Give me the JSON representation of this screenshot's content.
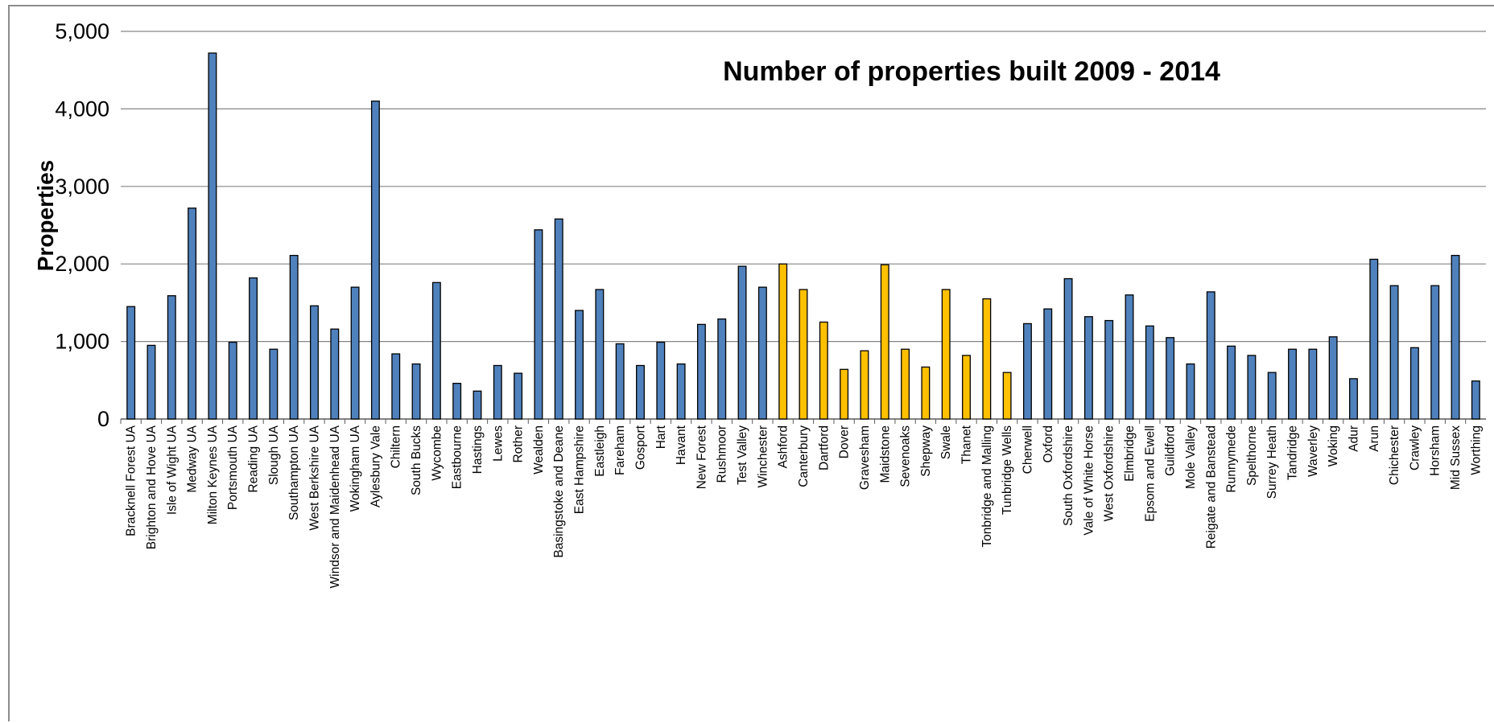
{
  "chart_data": {
    "type": "bar",
    "title": "Number of properties built 2009 - 2014",
    "xlabel": "",
    "ylabel": "Properties",
    "ylim": [
      0,
      5000
    ],
    "yticks": [
      0,
      1000,
      2000,
      3000,
      4000,
      5000
    ],
    "ytick_labels": [
      "0",
      "1,000",
      "2,000",
      "3,000",
      "4,000",
      "5,000"
    ],
    "grid": true,
    "legend": "none",
    "colors": {
      "default": "#4f81bd",
      "highlight": "#ffc000",
      "outline": "#000000",
      "gridline": "#868686"
    },
    "categories": [
      "Bracknell Forest UA",
      "Brighton and Hove UA",
      "Isle of Wight UA",
      "Medway UA",
      "Milton Keynes UA",
      "Portsmouth UA",
      "Reading UA",
      "Slough UA",
      "Southampton UA",
      "West Berkshire UA",
      "Windsor and Maidenhead UA",
      "Wokingham UA",
      "Aylesbury Vale",
      "Chiltern",
      "South Bucks",
      "Wycombe",
      "Eastbourne",
      "Hastings",
      "Lewes",
      "Rother",
      "Wealden",
      "Basingstoke and Deane",
      "East Hampshire",
      "Eastleigh",
      "Fareham",
      "Gosport",
      "Hart",
      "Havant",
      "New Forest",
      "Rushmoor",
      "Test Valley",
      "Winchester",
      "Ashford",
      "Canterbury",
      "Dartford",
      "Dover",
      "Gravesham",
      "Maidstone",
      "Sevenoaks",
      "Shepway",
      "Swale",
      "Thanet",
      "Tonbridge and Malling",
      "Tunbridge Wells",
      "Cherwell",
      "Oxford",
      "South Oxfordshire",
      "Vale of White Horse",
      "West Oxfordshire",
      "Elmbridge",
      "Epsom and Ewell",
      "Guildford",
      "Mole Valley",
      "Reigate and Banstead",
      "Runnymede",
      "Spelthorne",
      "Surrey Heath",
      "Tandridge",
      "Waverley",
      "Woking",
      "Adur",
      "Arun",
      "Chichester",
      "Crawley",
      "Horsham",
      "Mid Sussex",
      "Worthing"
    ],
    "values": [
      1450,
      950,
      1590,
      2720,
      4720,
      990,
      1820,
      900,
      2110,
      1460,
      1160,
      1700,
      4100,
      840,
      710,
      1760,
      460,
      360,
      690,
      590,
      2440,
      2580,
      1400,
      1670,
      970,
      690,
      990,
      710,
      1220,
      1290,
      1970,
      1700,
      2000,
      1670,
      1250,
      640,
      880,
      1990,
      900,
      670,
      1670,
      820,
      1550,
      600,
      1230,
      1420,
      1810,
      1320,
      1270,
      1600,
      1200,
      1050,
      710,
      1640,
      940,
      820,
      600,
      900,
      900,
      1060,
      520,
      2060,
      1720,
      920,
      1720,
      2110,
      490
    ],
    "highlighted_categories": [
      "Ashford",
      "Canterbury",
      "Dartford",
      "Dover",
      "Gravesham",
      "Maidstone",
      "Sevenoaks",
      "Shepway",
      "Swale",
      "Thanet",
      "Tonbridge and Malling",
      "Tunbridge Wells"
    ]
  }
}
